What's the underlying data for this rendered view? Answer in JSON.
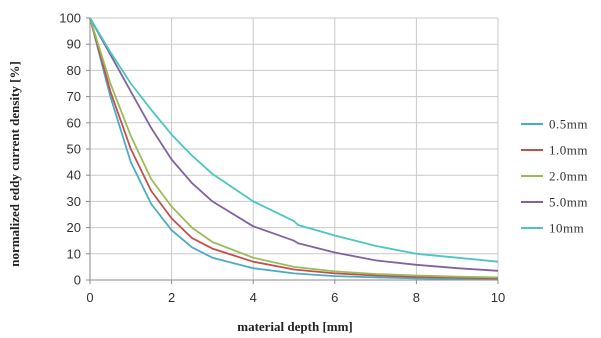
{
  "chart_data": {
    "type": "line",
    "xlabel": "material depth [mm]",
    "ylabel": "normalized eddy current density [%]",
    "xlim": [
      0,
      10
    ],
    "ylim": [
      0,
      100
    ],
    "x_ticks": [
      0,
      2,
      4,
      6,
      8,
      10
    ],
    "y_ticks": [
      0,
      10,
      20,
      30,
      40,
      50,
      60,
      70,
      80,
      90,
      100
    ],
    "grid": true,
    "legend_position": "right",
    "series": [
      {
        "name": "0.5mm",
        "color": "#4bacc6",
        "points": [
          [
            0,
            100
          ],
          [
            0.5,
            70
          ],
          [
            1,
            45
          ],
          [
            1.5,
            29
          ],
          [
            2,
            19
          ],
          [
            2.5,
            12.5
          ],
          [
            3,
            8.5
          ],
          [
            4,
            4.5
          ],
          [
            5,
            2.5
          ],
          [
            6,
            1.5
          ],
          [
            7,
            1
          ],
          [
            8,
            0.6
          ],
          [
            9,
            0.4
          ],
          [
            10,
            0.3
          ]
        ]
      },
      {
        "name": "1.0mm",
        "color": "#c0504d",
        "points": [
          [
            0,
            100
          ],
          [
            0.5,
            72
          ],
          [
            1,
            50
          ],
          [
            1.5,
            34
          ],
          [
            2,
            23.5
          ],
          [
            2.5,
            16
          ],
          [
            3,
            12
          ],
          [
            4,
            7
          ],
          [
            5,
            4
          ],
          [
            6,
            2.5
          ],
          [
            7,
            1.7
          ],
          [
            8,
            1.2
          ],
          [
            9,
            0.9
          ],
          [
            10,
            0.6
          ]
        ]
      },
      {
        "name": "2.0mm",
        "color": "#9bbb59",
        "points": [
          [
            0,
            100
          ],
          [
            0.5,
            75
          ],
          [
            1,
            55
          ],
          [
            1.5,
            38.5
          ],
          [
            2,
            28
          ],
          [
            2.5,
            20
          ],
          [
            3,
            14.5
          ],
          [
            4,
            8.5
          ],
          [
            5,
            5
          ],
          [
            6,
            3.3
          ],
          [
            7,
            2.3
          ],
          [
            8,
            1.7
          ],
          [
            9,
            1.3
          ],
          [
            10,
            1
          ]
        ]
      },
      {
        "name": "5.0mm",
        "color": "#8064a2",
        "points": [
          [
            0,
            100
          ],
          [
            0.5,
            86
          ],
          [
            1,
            72
          ],
          [
            1.5,
            58
          ],
          [
            2,
            46
          ],
          [
            2.5,
            37
          ],
          [
            3,
            30
          ],
          [
            4,
            20.5
          ],
          [
            5,
            15
          ],
          [
            5.1,
            14
          ],
          [
            6,
            10.5
          ],
          [
            7,
            7.5
          ],
          [
            8,
            5.8
          ],
          [
            9,
            4.5
          ],
          [
            10,
            3.5
          ]
        ]
      },
      {
        "name": "10mm",
        "color": "#4bc6c0",
        "points": [
          [
            0,
            100
          ],
          [
            0.5,
            87
          ],
          [
            1,
            75
          ],
          [
            1.5,
            65
          ],
          [
            2,
            55.5
          ],
          [
            2.5,
            47.5
          ],
          [
            3,
            40.5
          ],
          [
            4,
            30
          ],
          [
            5,
            22.5
          ],
          [
            5.1,
            21
          ],
          [
            6,
            17
          ],
          [
            7,
            13
          ],
          [
            8,
            10
          ],
          [
            9,
            8.5
          ],
          [
            10,
            7
          ]
        ]
      }
    ]
  }
}
